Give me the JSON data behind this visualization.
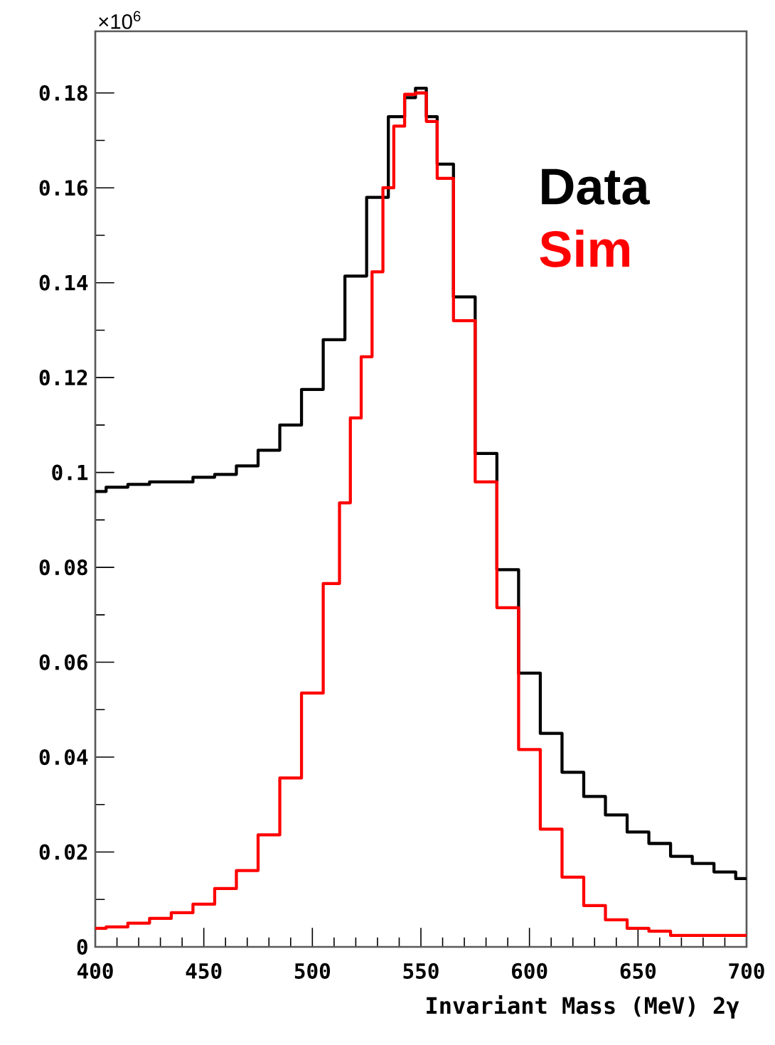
{
  "chart_data": {
    "type": "step",
    "xlabel": "Invariant Mass (MeV) 2γ",
    "annotations": [
      "×10$^{6}$"
    ],
    "xlim": [
      400,
      700
    ],
    "xticks": [
      400,
      450,
      500,
      550,
      600,
      650,
      700
    ],
    "ylim": [
      0,
      0.193
    ],
    "yticks": [
      0,
      0.02,
      0.04,
      0.06,
      0.08,
      0.1,
      0.12,
      0.14,
      0.16,
      0.18
    ],
    "legend": "top right",
    "series": [
      {
        "name": "Data",
        "color": "#000000",
        "x": [
          400,
          410,
          420,
          430,
          440,
          450,
          460,
          470,
          480,
          490,
          500,
          510,
          520,
          530,
          540,
          545,
          550,
          555,
          560,
          570,
          580,
          590,
          600,
          610,
          620,
          630,
          640,
          650,
          660,
          670,
          680,
          690,
          700
        ],
        "values": [
          0.096,
          0.0969,
          0.0975,
          0.098,
          0.098,
          0.099,
          0.0996,
          0.1014,
          0.1047,
          0.11,
          0.1175,
          0.128,
          0.1414,
          0.158,
          0.175,
          0.179,
          0.181,
          0.175,
          0.165,
          0.137,
          0.104,
          0.0795,
          0.0577,
          0.045,
          0.0368,
          0.0317,
          0.0278,
          0.0242,
          0.0218,
          0.0191,
          0.0176,
          0.0158,
          0.0144
        ]
      },
      {
        "name": "Sim",
        "color": "#ff0000",
        "x": [
          400,
          410,
          420,
          430,
          440,
          450,
          460,
          470,
          480,
          490,
          500,
          510,
          515,
          520,
          525,
          530,
          535,
          540,
          545,
          550,
          555,
          560,
          570,
          580,
          590,
          600,
          610,
          620,
          630,
          640,
          650,
          660,
          670,
          680,
          690,
          700
        ],
        "values": [
          0.0039,
          0.0042,
          0.005,
          0.006,
          0.0072,
          0.009,
          0.0123,
          0.0161,
          0.0236,
          0.0356,
          0.0535,
          0.0766,
          0.0936,
          0.1115,
          0.1244,
          0.1423,
          0.16,
          0.173,
          0.1797,
          0.18,
          0.174,
          0.162,
          0.132,
          0.098,
          0.0715,
          0.0416,
          0.0248,
          0.0147,
          0.0087,
          0.0057,
          0.0039,
          0.0033,
          0.0024,
          0.0024,
          0.0024,
          0.0024
        ]
      }
    ]
  }
}
